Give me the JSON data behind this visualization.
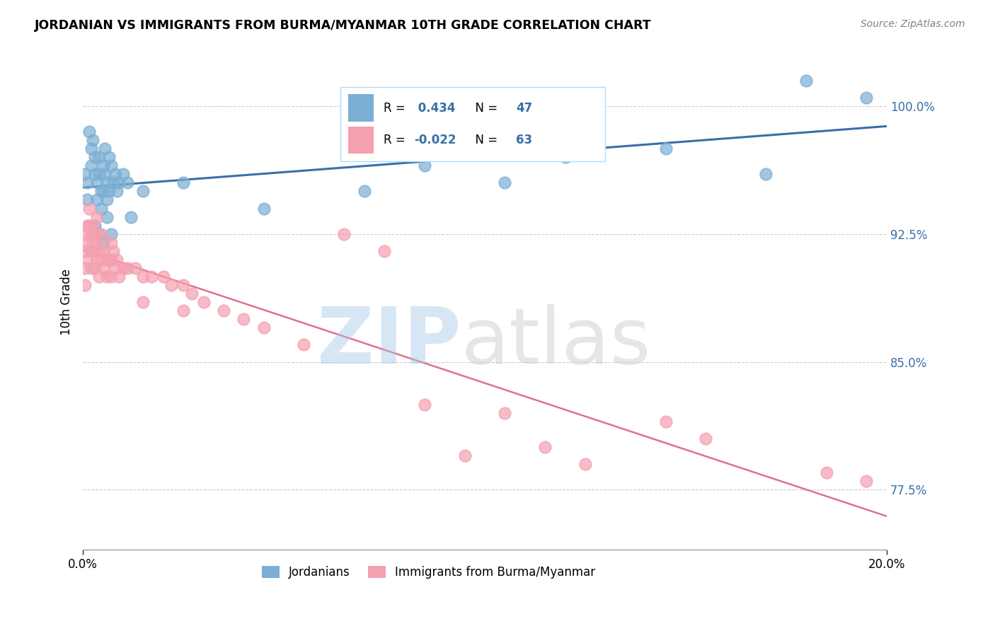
{
  "title": "JORDANIAN VS IMMIGRANTS FROM BURMA/MYANMAR 10TH GRADE CORRELATION CHART",
  "source": "Source: ZipAtlas.com",
  "ylabel": "10th Grade",
  "yticks": [
    77.5,
    85.0,
    92.5,
    100.0
  ],
  "xlim": [
    0.0,
    20.0
  ],
  "ylim": [
    74.0,
    103.0
  ],
  "blue_label": "Jordanians",
  "pink_label": "Immigrants from Burma/Myanmar",
  "blue_R": 0.434,
  "blue_N": 47,
  "pink_R": -0.022,
  "pink_N": 63,
  "blue_color": "#7bafd4",
  "pink_color": "#f4a0b0",
  "blue_line_color": "#3a6ea8",
  "pink_line_color": "#e07090",
  "blue_x": [
    0.05,
    0.1,
    0.1,
    0.15,
    0.2,
    0.2,
    0.25,
    0.3,
    0.3,
    0.35,
    0.35,
    0.4,
    0.4,
    0.45,
    0.45,
    0.5,
    0.5,
    0.55,
    0.55,
    0.6,
    0.6,
    0.65,
    0.65,
    0.7,
    0.75,
    0.8,
    0.85,
    0.9,
    1.0,
    1.1,
    1.2,
    1.5,
    2.5,
    4.5,
    7.0,
    8.5,
    10.5,
    12.0,
    14.5,
    17.0,
    18.0,
    19.5,
    0.3,
    0.4,
    0.5,
    0.6,
    0.7
  ],
  "blue_y": [
    96.0,
    95.5,
    94.5,
    98.5,
    97.5,
    96.5,
    98.0,
    97.0,
    96.0,
    95.5,
    94.5,
    97.0,
    96.0,
    95.0,
    94.0,
    96.5,
    95.0,
    97.5,
    96.0,
    95.5,
    94.5,
    97.0,
    95.0,
    96.5,
    95.5,
    96.0,
    95.0,
    95.5,
    96.0,
    95.5,
    93.5,
    95.0,
    95.5,
    94.0,
    95.0,
    96.5,
    95.5,
    97.0,
    97.5,
    96.0,
    101.5,
    100.5,
    93.0,
    92.5,
    92.0,
    93.5,
    92.5
  ],
  "pink_x": [
    0.05,
    0.05,
    0.05,
    0.05,
    0.1,
    0.1,
    0.1,
    0.15,
    0.15,
    0.2,
    0.2,
    0.2,
    0.25,
    0.25,
    0.3,
    0.3,
    0.3,
    0.35,
    0.35,
    0.35,
    0.4,
    0.4,
    0.45,
    0.45,
    0.5,
    0.5,
    0.6,
    0.6,
    0.65,
    0.7,
    0.7,
    0.7,
    0.75,
    0.8,
    0.85,
    0.9,
    1.0,
    1.1,
    1.3,
    1.5,
    1.5,
    1.7,
    2.0,
    2.2,
    2.5,
    2.5,
    2.7,
    3.0,
    3.5,
    4.0,
    4.5,
    5.5,
    6.5,
    7.5,
    8.5,
    9.5,
    10.5,
    11.5,
    12.5,
    14.5,
    15.5,
    18.5,
    19.5
  ],
  "pink_y": [
    92.5,
    91.5,
    90.5,
    89.5,
    93.0,
    92.0,
    91.0,
    94.0,
    93.0,
    92.5,
    91.5,
    90.5,
    93.0,
    92.0,
    92.5,
    91.5,
    90.5,
    93.5,
    92.0,
    91.0,
    91.5,
    90.0,
    92.5,
    91.0,
    91.5,
    90.5,
    91.0,
    90.0,
    91.0,
    92.0,
    91.0,
    90.0,
    91.5,
    90.5,
    91.0,
    90.0,
    90.5,
    90.5,
    90.5,
    90.0,
    88.5,
    90.0,
    90.0,
    89.5,
    89.5,
    88.0,
    89.0,
    88.5,
    88.0,
    87.5,
    87.0,
    86.0,
    92.5,
    91.5,
    82.5,
    79.5,
    82.0,
    80.0,
    79.0,
    81.5,
    80.5,
    78.5,
    78.0
  ]
}
